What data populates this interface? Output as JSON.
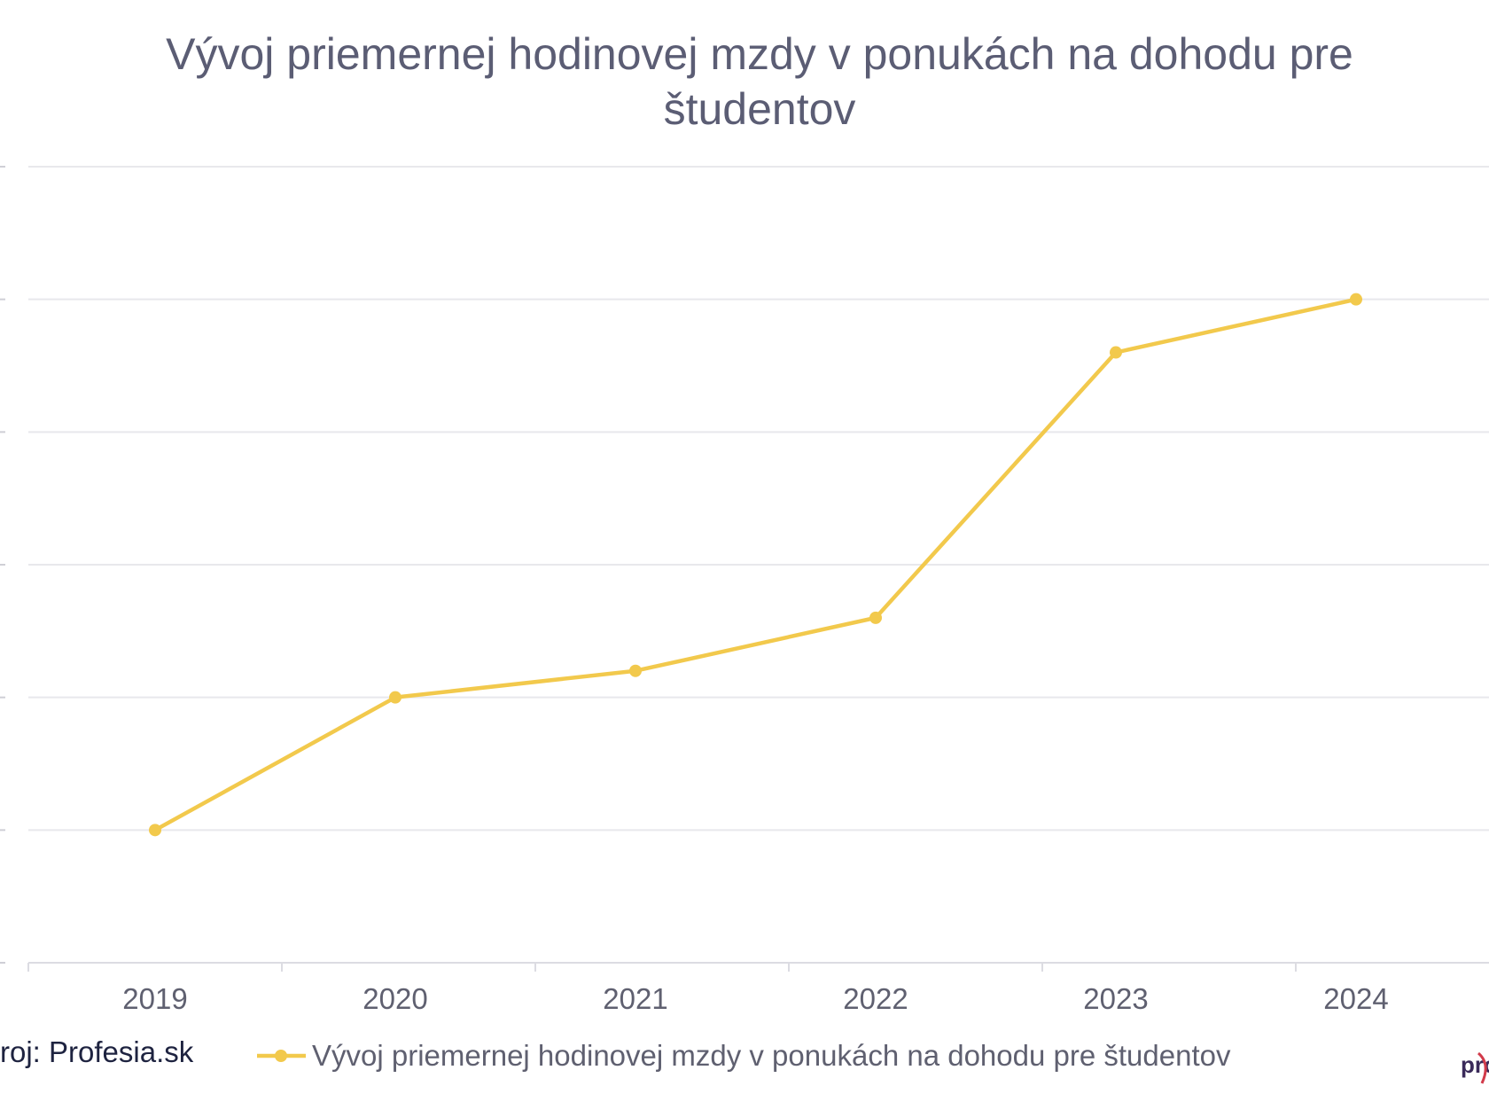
{
  "chart_data": {
    "type": "line",
    "title": "Vývoj priemernej hodinovej mzdy v ponukách na dohodu pre študentov",
    "title_lines": [
      "Vývoj priemernej hodinovej mzdy v ponukách na dohodu pre",
      "študentov"
    ],
    "categories": [
      "2019",
      "2020",
      "2021",
      "2022",
      "2023",
      "2024"
    ],
    "series": [
      {
        "name": "Vývoj priemernej hodinovej mzdy v ponukách na dohodu pre študentov",
        "values": [
          1.0,
          2.0,
          2.2,
          2.6,
          4.6,
          5.0
        ],
        "color": "#f2c94c"
      }
    ],
    "ylim": [
      0,
      6
    ],
    "y_gridlines": [
      0,
      1,
      2,
      3,
      4,
      5,
      6
    ],
    "grid": true,
    "legend_position": "bottom",
    "xlabel": "",
    "ylabel": ""
  },
  "footer": {
    "source": "roj: Profesia.sk",
    "logo_text": "pro"
  },
  "colors": {
    "line": "#f2c94c",
    "grid": "#e8e8ec",
    "title": "#5b5d74"
  }
}
